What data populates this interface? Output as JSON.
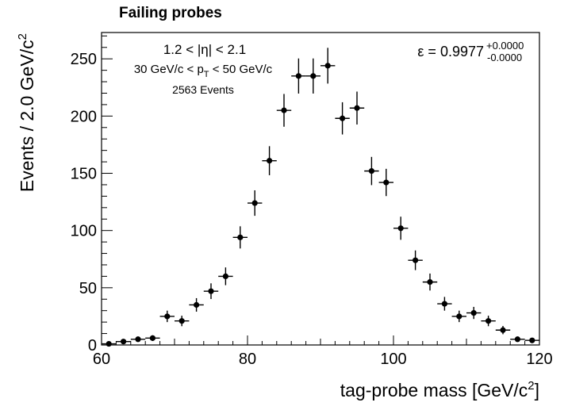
{
  "chart_data": {
    "type": "scatter",
    "title": "Failing probes",
    "xlabel": "tag-probe mass [GeV/c",
    "xlabel_sup": "2",
    "xlabel_close": "]",
    "ylabel": "Events / 2.0 GeV/c",
    "ylabel_sup": "2",
    "xlim": [
      60,
      120
    ],
    "ylim": [
      0,
      273
    ],
    "x_ticks": [
      60,
      80,
      100,
      120
    ],
    "x_tick_labels": [
      "60",
      "80",
      "100",
      "120"
    ],
    "y_ticks": [
      0,
      50,
      100,
      150,
      200,
      250
    ],
    "y_tick_labels": [
      "0",
      "50",
      "100",
      "150",
      "200",
      "250"
    ],
    "grid": false,
    "bin_width": 2,
    "annotations": {
      "eta_range": "1.2 < |η| < 2.1",
      "pt_range_pre": "30 GeV/c < p",
      "pt_range_sub": "T",
      "pt_range_post": " < 50 GeV/c",
      "events": "2563 Events",
      "efficiency": "ε = 0.9977",
      "eff_err_up": "+0.0000",
      "eff_err_down": "-0.0000"
    },
    "series": [
      {
        "x": [
          61,
          63,
          65,
          67,
          69,
          71,
          73,
          75,
          77,
          79,
          81,
          83,
          85,
          87,
          89,
          91,
          93,
          95,
          97,
          99,
          101,
          103,
          105,
          107,
          109,
          111,
          113,
          115,
          117,
          119
        ],
        "y": [
          1,
          3,
          5,
          6,
          25,
          21,
          35,
          47,
          60,
          94,
          124,
          161,
          205,
          235,
          235,
          244,
          198,
          207,
          152,
          142,
          102,
          74,
          55,
          36,
          25,
          28,
          21,
          13,
          5,
          4
        ]
      }
    ]
  }
}
